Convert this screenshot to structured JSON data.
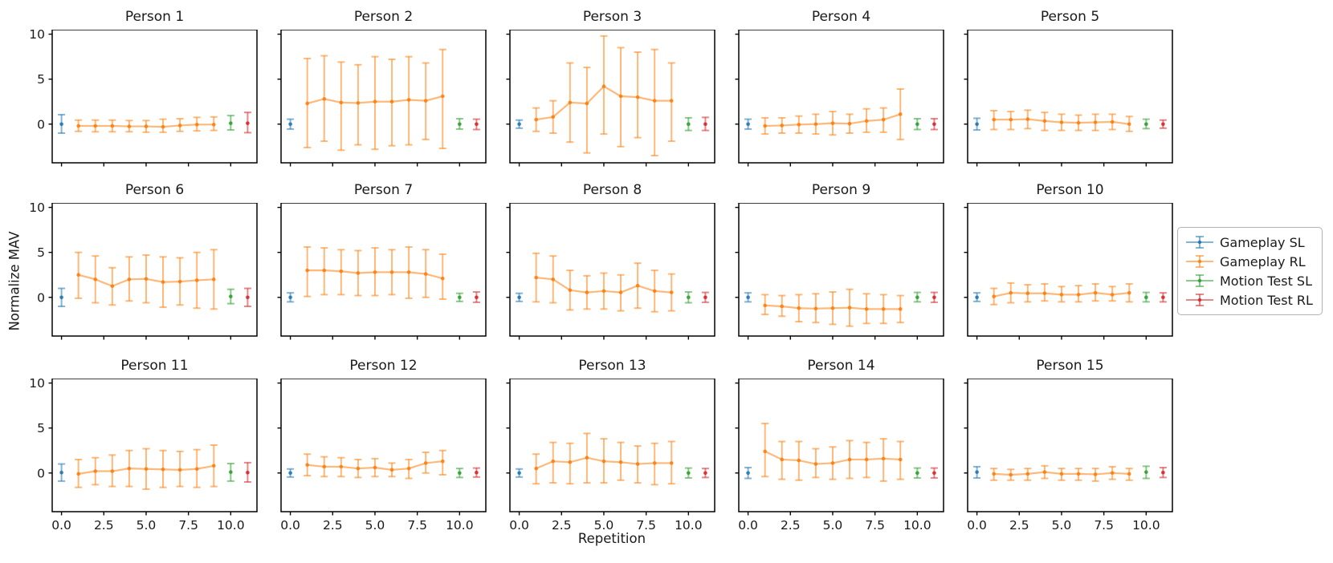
{
  "chart_data": {
    "type": "line",
    "subtype": "errorbar-grid",
    "grid": {
      "rows": 3,
      "cols": 5
    },
    "xlabel": "Repetition",
    "ylabel": "Normalize MAV",
    "xlim": [
      -0.55,
      11.55
    ],
    "ylim": [
      -4.3,
      10.5
    ],
    "yticks": [
      0,
      5,
      10
    ],
    "ytick_labels": [
      "0",
      "5",
      "10"
    ],
    "xticks": [
      0,
      2.5,
      5,
      7.5,
      10
    ],
    "xtick_labels": [
      "0.0",
      "2.5",
      "5.0",
      "7.5",
      "10.0"
    ],
    "legend_position": "right-outside",
    "legend": [
      {
        "label": "Gameplay SL",
        "color": "#1f77b4"
      },
      {
        "label": "Gameplay RL",
        "color": "#ff7f0e"
      },
      {
        "label": "Motion Test SL",
        "color": "#2ca02c"
      },
      {
        "label": "Motion Test RL",
        "color": "#d62728"
      }
    ],
    "series_keys": [
      "gameplay_sl",
      "gameplay_rl",
      "motion_test_sl",
      "motion_test_rl"
    ],
    "subplots": [
      {
        "title": "Person 1",
        "gameplay_sl": {
          "x": 0,
          "y": 0.0,
          "lo": -1.0,
          "hi": 1.05
        },
        "gameplay_rl": {
          "x_start": 1,
          "y": [
            -0.2,
            -0.2,
            -0.2,
            -0.25,
            -0.25,
            -0.3,
            -0.15,
            -0.05,
            -0.05
          ],
          "lo": [
            -0.8,
            -0.85,
            -0.85,
            -0.85,
            -0.9,
            -0.9,
            -0.8,
            -0.75,
            -0.7
          ],
          "hi": [
            0.45,
            0.45,
            0.45,
            0.4,
            0.4,
            0.55,
            0.6,
            0.75,
            0.8
          ]
        },
        "motion_test_sl": {
          "x": 10,
          "y": 0.1,
          "lo": -0.65,
          "hi": 0.95
        },
        "motion_test_rl": {
          "x": 11,
          "y": 0.1,
          "lo": -0.95,
          "hi": 1.3
        }
      },
      {
        "title": "Person 2",
        "gameplay_sl": {
          "x": 0,
          "y": 0.0,
          "lo": -0.55,
          "hi": 0.55
        },
        "gameplay_rl": {
          "x_start": 1,
          "y": [
            2.3,
            2.8,
            2.4,
            2.35,
            2.5,
            2.5,
            2.7,
            2.6,
            3.1
          ],
          "lo": [
            -2.6,
            -1.9,
            -2.9,
            -2.3,
            -2.8,
            -2.4,
            -2.3,
            -1.7,
            -2.7
          ],
          "hi": [
            7.3,
            7.6,
            6.9,
            6.6,
            7.5,
            7.2,
            7.5,
            6.8,
            8.3
          ]
        },
        "motion_test_sl": {
          "x": 10,
          "y": 0.0,
          "lo": -0.55,
          "hi": 0.6
        },
        "motion_test_rl": {
          "x": 11,
          "y": 0.0,
          "lo": -0.6,
          "hi": 0.55
        }
      },
      {
        "title": "Person 3",
        "gameplay_sl": {
          "x": 0,
          "y": 0.0,
          "lo": -0.45,
          "hi": 0.45
        },
        "gameplay_rl": {
          "x_start": 1,
          "y": [
            0.5,
            0.8,
            2.4,
            2.3,
            4.2,
            3.1,
            3.0,
            2.6,
            2.6
          ],
          "lo": [
            -0.8,
            -1.0,
            -2.0,
            -3.2,
            -1.1,
            -2.5,
            -1.5,
            -3.5,
            -1.9
          ],
          "hi": [
            1.8,
            2.6,
            6.8,
            6.3,
            9.8,
            8.5,
            8.0,
            8.3,
            6.8
          ]
        },
        "motion_test_sl": {
          "x": 10,
          "y": 0.0,
          "lo": -0.7,
          "hi": 0.7
        },
        "motion_test_rl": {
          "x": 11,
          "y": 0.0,
          "lo": -0.7,
          "hi": 0.75
        }
      },
      {
        "title": "Person 4",
        "gameplay_sl": {
          "x": 0,
          "y": 0.0,
          "lo": -0.55,
          "hi": 0.55
        },
        "gameplay_rl": {
          "x_start": 1,
          "y": [
            -0.2,
            -0.15,
            -0.05,
            0.0,
            0.1,
            0.05,
            0.35,
            0.5,
            1.1
          ],
          "lo": [
            -1.1,
            -1.0,
            -1.0,
            -1.1,
            -1.2,
            -1.0,
            -0.9,
            -0.9,
            -1.7
          ],
          "hi": [
            0.7,
            0.7,
            0.9,
            1.1,
            1.4,
            1.1,
            1.7,
            1.8,
            3.9
          ]
        },
        "motion_test_sl": {
          "x": 10,
          "y": 0.0,
          "lo": -0.6,
          "hi": 0.6
        },
        "motion_test_rl": {
          "x": 11,
          "y": 0.0,
          "lo": -0.6,
          "hi": 0.6
        }
      },
      {
        "title": "Person 5",
        "gameplay_sl": {
          "x": 0,
          "y": 0.0,
          "lo": -0.65,
          "hi": 0.65
        },
        "gameplay_rl": {
          "x_start": 1,
          "y": [
            0.5,
            0.5,
            0.55,
            0.35,
            0.2,
            0.15,
            0.2,
            0.25,
            0.0
          ],
          "lo": [
            -0.6,
            -0.6,
            -0.5,
            -0.7,
            -0.7,
            -0.7,
            -0.7,
            -0.6,
            -0.8
          ],
          "hi": [
            1.5,
            1.4,
            1.55,
            1.3,
            1.1,
            1.0,
            1.1,
            1.1,
            0.85
          ]
        },
        "motion_test_sl": {
          "x": 10,
          "y": 0.0,
          "lo": -0.5,
          "hi": 0.55
        },
        "motion_test_rl": {
          "x": 11,
          "y": 0.0,
          "lo": -0.45,
          "hi": 0.45
        }
      },
      {
        "title": "Person 6",
        "gameplay_sl": {
          "x": 0,
          "y": 0.0,
          "lo": -1.0,
          "hi": 1.0
        },
        "gameplay_rl": {
          "x_start": 1,
          "y": [
            2.5,
            2.0,
            1.25,
            2.0,
            2.05,
            1.7,
            1.75,
            1.9,
            2.0
          ],
          "lo": [
            -0.1,
            -0.6,
            -0.85,
            -0.4,
            -0.6,
            -1.1,
            -0.85,
            -1.2,
            -1.3
          ],
          "hi": [
            5.0,
            4.6,
            3.3,
            4.5,
            4.7,
            4.5,
            4.4,
            5.0,
            5.3
          ]
        },
        "motion_test_sl": {
          "x": 10,
          "y": 0.1,
          "lo": -0.7,
          "hi": 0.9
        },
        "motion_test_rl": {
          "x": 11,
          "y": 0.0,
          "lo": -1.0,
          "hi": 1.0
        }
      },
      {
        "title": "Person 7",
        "gameplay_sl": {
          "x": 0,
          "y": 0.0,
          "lo": -0.5,
          "hi": 0.5
        },
        "gameplay_rl": {
          "x_start": 1,
          "y": [
            3.0,
            3.0,
            2.9,
            2.7,
            2.8,
            2.8,
            2.8,
            2.6,
            2.1
          ],
          "lo": [
            0.1,
            0.3,
            0.3,
            0.2,
            0.2,
            0.3,
            -0.1,
            0.0,
            -0.2
          ],
          "hi": [
            5.6,
            5.5,
            5.3,
            5.2,
            5.5,
            5.3,
            5.6,
            5.3,
            4.8
          ]
        },
        "motion_test_sl": {
          "x": 10,
          "y": 0.0,
          "lo": -0.45,
          "hi": 0.45
        },
        "motion_test_rl": {
          "x": 11,
          "y": 0.0,
          "lo": -0.55,
          "hi": 0.6
        }
      },
      {
        "title": "Person 8",
        "gameplay_sl": {
          "x": 0,
          "y": 0.0,
          "lo": -0.45,
          "hi": 0.45
        },
        "gameplay_rl": {
          "x_start": 1,
          "y": [
            2.2,
            2.0,
            0.8,
            0.55,
            0.7,
            0.55,
            1.3,
            0.7,
            0.55
          ],
          "lo": [
            -0.5,
            -0.6,
            -1.4,
            -1.3,
            -1.3,
            -1.5,
            -1.2,
            -1.6,
            -1.5
          ],
          "hi": [
            4.9,
            4.6,
            3.0,
            2.4,
            2.7,
            2.5,
            3.8,
            3.0,
            2.6
          ]
        },
        "motion_test_sl": {
          "x": 10,
          "y": 0.0,
          "lo": -0.6,
          "hi": 0.6
        },
        "motion_test_rl": {
          "x": 11,
          "y": 0.0,
          "lo": -0.55,
          "hi": 0.55
        }
      },
      {
        "title": "Person 9",
        "gameplay_sl": {
          "x": 0,
          "y": 0.0,
          "lo": -0.5,
          "hi": 0.5
        },
        "gameplay_rl": {
          "x_start": 1,
          "y": [
            -0.9,
            -1.0,
            -1.2,
            -1.25,
            -1.2,
            -1.15,
            -1.3,
            -1.3,
            -1.3
          ],
          "lo": [
            -1.9,
            -2.1,
            -2.7,
            -2.8,
            -3.0,
            -3.2,
            -2.9,
            -2.9,
            -2.8
          ],
          "hi": [
            0.3,
            0.2,
            0.3,
            0.4,
            0.6,
            0.9,
            0.4,
            0.3,
            0.2
          ]
        },
        "motion_test_sl": {
          "x": 10,
          "y": 0.0,
          "lo": -0.5,
          "hi": 0.55
        },
        "motion_test_rl": {
          "x": 11,
          "y": 0.0,
          "lo": -0.55,
          "hi": 0.55
        }
      },
      {
        "title": "Person 10",
        "gameplay_sl": {
          "x": 0,
          "y": 0.0,
          "lo": -0.45,
          "hi": 0.5
        },
        "gameplay_rl": {
          "x_start": 1,
          "y": [
            0.1,
            0.5,
            0.45,
            0.45,
            0.3,
            0.3,
            0.5,
            0.3,
            0.5
          ],
          "lo": [
            -0.8,
            -0.6,
            -0.5,
            -0.4,
            -0.5,
            -0.5,
            -0.4,
            -0.4,
            -0.5
          ],
          "hi": [
            1.0,
            1.6,
            1.4,
            1.5,
            1.2,
            1.3,
            1.5,
            1.2,
            1.5
          ]
        },
        "motion_test_sl": {
          "x": 10,
          "y": 0.0,
          "lo": -0.5,
          "hi": 0.55
        },
        "motion_test_rl": {
          "x": 11,
          "y": 0.0,
          "lo": -0.5,
          "hi": 0.5
        }
      },
      {
        "title": "Person 11",
        "gameplay_sl": {
          "x": 0,
          "y": 0.05,
          "lo": -0.9,
          "hi": 1.0
        },
        "gameplay_rl": {
          "x_start": 1,
          "y": [
            -0.1,
            0.2,
            0.2,
            0.5,
            0.45,
            0.4,
            0.35,
            0.45,
            0.8
          ],
          "lo": [
            -1.6,
            -1.3,
            -1.5,
            -1.5,
            -1.8,
            -1.6,
            -1.5,
            -1.6,
            -1.5
          ],
          "hi": [
            1.5,
            1.7,
            2.0,
            2.5,
            2.7,
            2.5,
            2.4,
            2.6,
            3.1
          ]
        },
        "motion_test_sl": {
          "x": 10,
          "y": 0.1,
          "lo": -0.9,
          "hi": 1.05
        },
        "motion_test_rl": {
          "x": 11,
          "y": 0.05,
          "lo": -1.0,
          "hi": 1.15
        }
      },
      {
        "title": "Person 12",
        "gameplay_sl": {
          "x": 0,
          "y": 0.0,
          "lo": -0.45,
          "hi": 0.45
        },
        "gameplay_rl": {
          "x_start": 1,
          "y": [
            0.9,
            0.7,
            0.7,
            0.5,
            0.6,
            0.35,
            0.5,
            1.1,
            1.3
          ],
          "lo": [
            -0.3,
            -0.4,
            -0.4,
            -0.5,
            -0.4,
            -0.4,
            -0.6,
            0.0,
            -0.2
          ],
          "hi": [
            2.1,
            1.8,
            1.7,
            1.5,
            1.6,
            1.1,
            1.5,
            2.3,
            2.5
          ]
        },
        "motion_test_sl": {
          "x": 10,
          "y": 0.0,
          "lo": -0.5,
          "hi": 0.5
        },
        "motion_test_rl": {
          "x": 11,
          "y": 0.05,
          "lo": -0.45,
          "hi": 0.55
        }
      },
      {
        "title": "Person 13",
        "gameplay_sl": {
          "x": 0,
          "y": 0.0,
          "lo": -0.45,
          "hi": 0.45
        },
        "gameplay_rl": {
          "x_start": 1,
          "y": [
            0.5,
            1.3,
            1.2,
            1.7,
            1.3,
            1.2,
            1.0,
            1.1,
            1.1
          ],
          "lo": [
            -1.2,
            -1.1,
            -1.2,
            -1.1,
            -1.1,
            -0.8,
            -1.1,
            -1.3,
            -1.2
          ],
          "hi": [
            2.1,
            3.4,
            3.3,
            4.4,
            3.8,
            3.4,
            3.0,
            3.3,
            3.5
          ]
        },
        "motion_test_sl": {
          "x": 10,
          "y": 0.0,
          "lo": -0.55,
          "hi": 0.55
        },
        "motion_test_rl": {
          "x": 11,
          "y": 0.0,
          "lo": -0.5,
          "hi": 0.5
        }
      },
      {
        "title": "Person 14",
        "gameplay_sl": {
          "x": 0,
          "y": 0.0,
          "lo": -0.6,
          "hi": 0.6
        },
        "gameplay_rl": {
          "x_start": 1,
          "y": [
            2.4,
            1.5,
            1.4,
            1.0,
            1.1,
            1.5,
            1.5,
            1.6,
            1.5
          ],
          "lo": [
            -0.4,
            -0.7,
            -0.8,
            -0.5,
            -0.7,
            -0.6,
            -0.5,
            -0.9,
            -0.7
          ],
          "hi": [
            5.5,
            3.5,
            3.5,
            2.7,
            2.9,
            3.6,
            3.4,
            3.8,
            3.5
          ]
        },
        "motion_test_sl": {
          "x": 10,
          "y": 0.0,
          "lo": -0.55,
          "hi": 0.55
        },
        "motion_test_rl": {
          "x": 11,
          "y": 0.0,
          "lo": -0.55,
          "hi": 0.55
        }
      },
      {
        "title": "Person 15",
        "gameplay_sl": {
          "x": 0,
          "y": 0.1,
          "lo": -0.55,
          "hi": 0.7
        },
        "gameplay_rl": {
          "x_start": 1,
          "y": [
            -0.1,
            -0.2,
            -0.1,
            0.1,
            -0.1,
            -0.1,
            -0.15,
            0.0,
            -0.1
          ],
          "lo": [
            -0.8,
            -0.8,
            -0.8,
            -0.6,
            -0.8,
            -0.8,
            -0.9,
            -0.7,
            -0.8
          ],
          "hi": [
            0.5,
            0.4,
            0.5,
            0.8,
            0.5,
            0.5,
            0.5,
            0.7,
            0.5
          ]
        },
        "motion_test_sl": {
          "x": 10,
          "y": 0.1,
          "lo": -0.6,
          "hi": 0.75
        },
        "motion_test_rl": {
          "x": 11,
          "y": 0.05,
          "lo": -0.5,
          "hi": 0.6
        }
      }
    ]
  }
}
